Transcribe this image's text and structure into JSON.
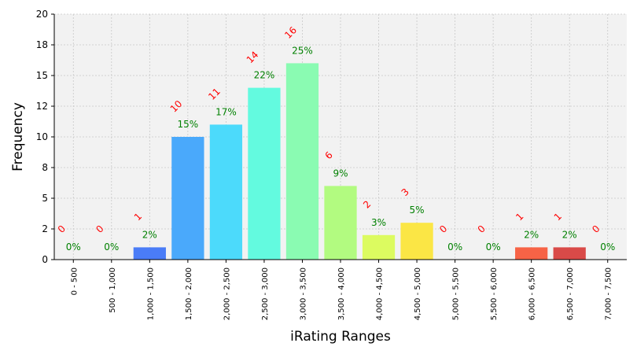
{
  "chart_data": {
    "type": "bar",
    "xlabel": "iRating Ranges",
    "ylabel": "Frequency",
    "ylim": [
      0,
      20
    ],
    "yticks": [
      {
        "value": 0,
        "label": "0"
      },
      {
        "value": 2.5,
        "label": "2"
      },
      {
        "value": 5,
        "label": "5"
      },
      {
        "value": 7.5,
        "label": "8"
      },
      {
        "value": 10,
        "label": "10"
      },
      {
        "value": 12.5,
        "label": "12"
      },
      {
        "value": 15,
        "label": "15"
      },
      {
        "value": 17.5,
        "label": "18"
      },
      {
        "value": 20,
        "label": "20"
      }
    ],
    "grid": true,
    "categories": [
      "0 - 500",
      "500 - 1,000",
      "1,000 - 1,500",
      "1,500 - 2,000",
      "2,000 - 2,500",
      "2,500 - 3,000",
      "3,000 - 3,500",
      "3,500 - 4,000",
      "4,000 - 4,500",
      "4,500 - 5,000",
      "5,000 - 5,500",
      "5,500 - 6,000",
      "6,000 - 6,500",
      "6,500 - 7,000",
      "7,000 - 7,500"
    ],
    "values": [
      0,
      0,
      1,
      10,
      11,
      14,
      16,
      6,
      2,
      3,
      0,
      0,
      1,
      1,
      0
    ],
    "count_labels": [
      "0",
      "0",
      "1",
      "10",
      "11",
      "14",
      "16",
      "6",
      "2",
      "3",
      "0",
      "0",
      "1",
      "1",
      "0"
    ],
    "percent_labels": [
      "0%",
      "0%",
      "2%",
      "15%",
      "17%",
      "22%",
      "25%",
      "9%",
      "3%",
      "5%",
      "0%",
      "0%",
      "2%",
      "2%",
      "0%"
    ],
    "colors": [
      "#3b4cc0",
      "#3f5ee8",
      "#4a7cf7",
      "#4aa9fb",
      "#4cdafb",
      "#63fadf",
      "#8afbb2",
      "#b2fb80",
      "#dcfb60",
      "#fbe645",
      "#fbb734",
      "#fb8a2c",
      "#f76346",
      "#d94a48",
      "#b01f2b"
    ],
    "count_label_color": "#ff0000",
    "percent_label_color": "#008000",
    "plot_background": "#f2f2f2"
  }
}
